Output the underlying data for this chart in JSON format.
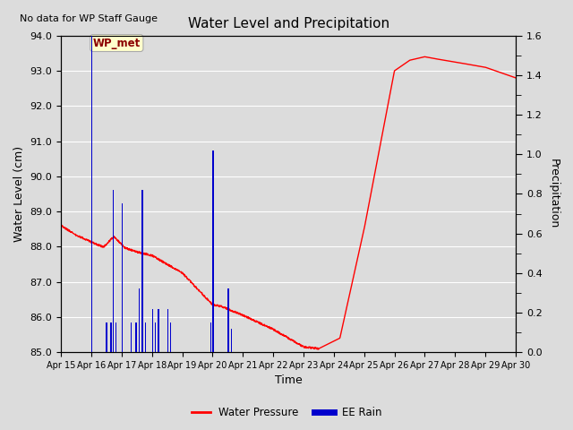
{
  "title": "Water Level and Precipitation",
  "top_left_text": "No data for WP Staff Gauge",
  "ylabel_left": "Water Level (cm)",
  "ylabel_right": "Precipitation",
  "xlabel": "Time",
  "ylim_left": [
    85.0,
    94.0
  ],
  "ylim_right": [
    0.0,
    1.6
  ],
  "yticks_left": [
    85.0,
    86.0,
    87.0,
    88.0,
    89.0,
    90.0,
    91.0,
    92.0,
    93.0,
    94.0
  ],
  "yticks_right_labeled": [
    0.0,
    0.2,
    0.4,
    0.6,
    0.8,
    1.0,
    1.2,
    1.4,
    1.6
  ],
  "xtick_labels": [
    "Apr 15",
    "Apr 16",
    "Apr 17",
    "Apr 18",
    "Apr 19",
    "Apr 20",
    "Apr 21",
    "Apr 22",
    "Apr 23",
    "Apr 24",
    "Apr 25",
    "Apr 26",
    "Apr 27",
    "Apr 28",
    "Apr 29",
    "Apr 30"
  ],
  "bg_color": "#dcdcdc",
  "grid_color": "#ffffff",
  "red_line_color": "#ff0000",
  "blue_bar_color": "#0000cd",
  "legend_entries": [
    "Water Pressure",
    "EE Rain"
  ],
  "wp_met_label": "WP_met",
  "wp_met_label_color": "#8b0000",
  "wp_met_box_facecolor": "#ffffcc",
  "wp_met_box_edgecolor": "#aaaaaa",
  "rain_x": [
    16.02,
    16.5,
    16.65,
    16.72,
    16.82,
    17.02,
    17.32,
    17.48,
    17.58,
    17.68,
    17.78,
    18.02,
    18.12,
    18.22,
    18.52,
    18.62,
    19.95,
    20.02,
    20.52,
    20.62
  ],
  "rain_y": [
    1.6,
    0.15,
    0.15,
    0.82,
    0.15,
    0.75,
    0.15,
    0.15,
    0.32,
    0.82,
    0.15,
    0.22,
    0.15,
    0.22,
    0.22,
    0.15,
    0.15,
    1.02,
    0.32,
    0.12
  ],
  "bar_width": 0.04
}
